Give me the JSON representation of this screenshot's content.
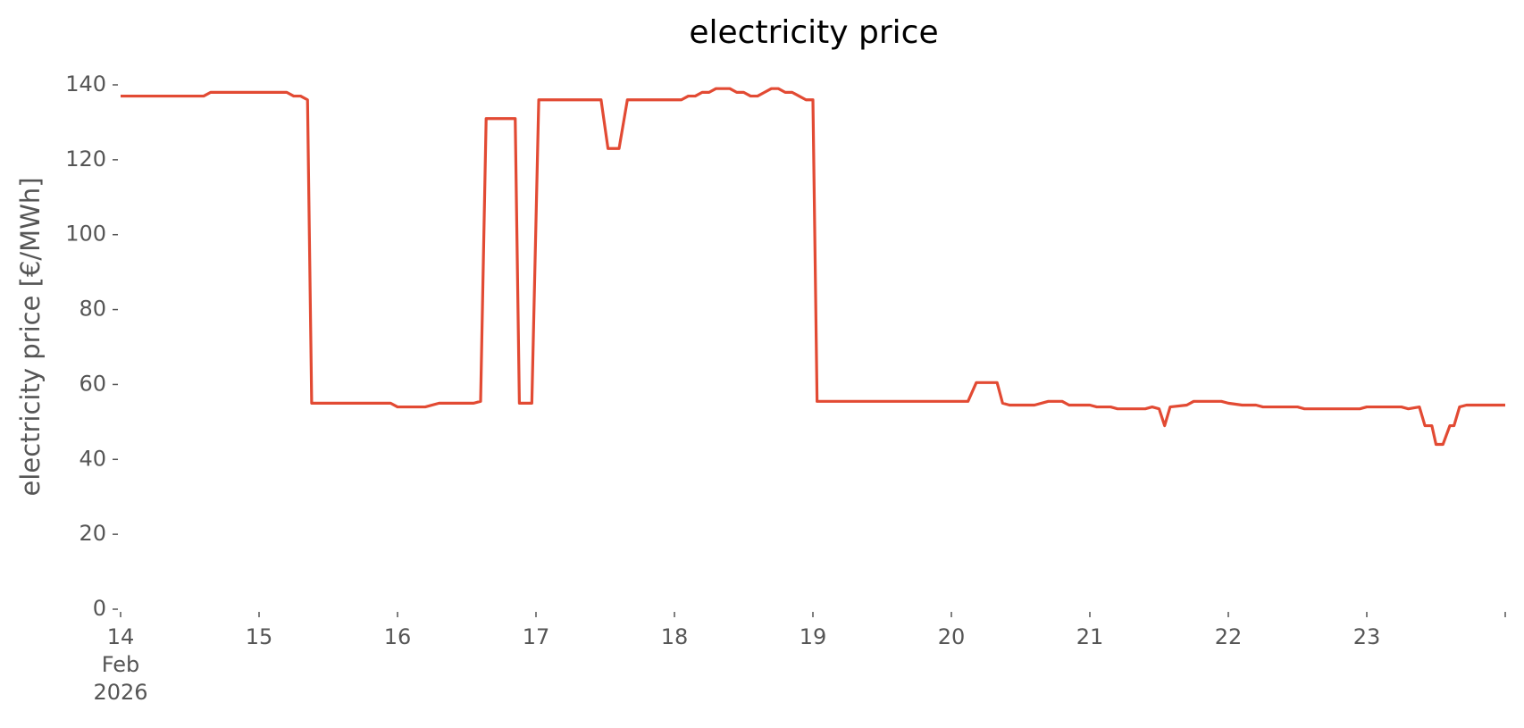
{
  "chart_data": {
    "type": "line",
    "title": "electricity price",
    "ylabel": "electricity price [€/MWh]",
    "x": [
      14.0,
      14.6,
      14.65,
      15.2,
      15.25,
      15.3,
      15.35,
      15.38,
      15.42,
      15.95,
      16.0,
      16.2,
      16.3,
      16.55,
      16.6,
      16.64,
      16.85,
      16.88,
      16.97,
      17.02,
      17.47,
      17.52,
      17.6,
      17.66,
      18.05,
      18.1,
      18.15,
      18.2,
      18.25,
      18.3,
      18.4,
      18.45,
      18.5,
      18.55,
      18.6,
      18.65,
      18.7,
      18.75,
      18.8,
      18.85,
      18.9,
      18.95,
      19.0,
      19.03,
      20.12,
      20.18,
      20.33,
      20.37,
      20.42,
      20.6,
      20.7,
      20.8,
      20.85,
      21.0,
      21.05,
      21.15,
      21.2,
      21.4,
      21.45,
      21.5,
      21.54,
      21.58,
      21.7,
      21.75,
      21.95,
      22.0,
      22.1,
      22.2,
      22.25,
      22.5,
      22.55,
      22.95,
      23.0,
      23.25,
      23.3,
      23.38,
      23.42,
      23.47,
      23.5,
      23.55,
      23.6,
      23.63,
      23.67,
      23.72,
      24.0
    ],
    "values": [
      137,
      137,
      138,
      138,
      137,
      137,
      136,
      55,
      55,
      55,
      54,
      54,
      55,
      55,
      55.5,
      131,
      131,
      55,
      55,
      136,
      136,
      123,
      123,
      136,
      136,
      137,
      137,
      138,
      138,
      139,
      139,
      138,
      138,
      137,
      137,
      138,
      139,
      139,
      138,
      138,
      137,
      136,
      136,
      55.5,
      55.5,
      60.5,
      60.5,
      55,
      54.5,
      54.5,
      55.5,
      55.5,
      54.5,
      54.5,
      54,
      54,
      53.5,
      53.5,
      54,
      53.5,
      49,
      54,
      54.5,
      55.5,
      55.5,
      55,
      54.5,
      54.5,
      54,
      54,
      53.5,
      53.5,
      54,
      54,
      53.5,
      54,
      49,
      49,
      44,
      44,
      49,
      49,
      54,
      54.5,
      54.5
    ],
    "color": "#e24a33",
    "xlim": [
      14,
      24
    ],
    "xticks": [
      14,
      15,
      16,
      17,
      18,
      19,
      20,
      21,
      22,
      23,
      {
        "value": 24,
        "label": null
      }
    ],
    "xtick_sublabels": [
      "Feb",
      "2026"
    ],
    "ylim": [
      0,
      140
    ],
    "yticks": [
      0,
      20,
      40,
      60,
      80,
      100,
      120,
      140
    ],
    "grid": false
  }
}
